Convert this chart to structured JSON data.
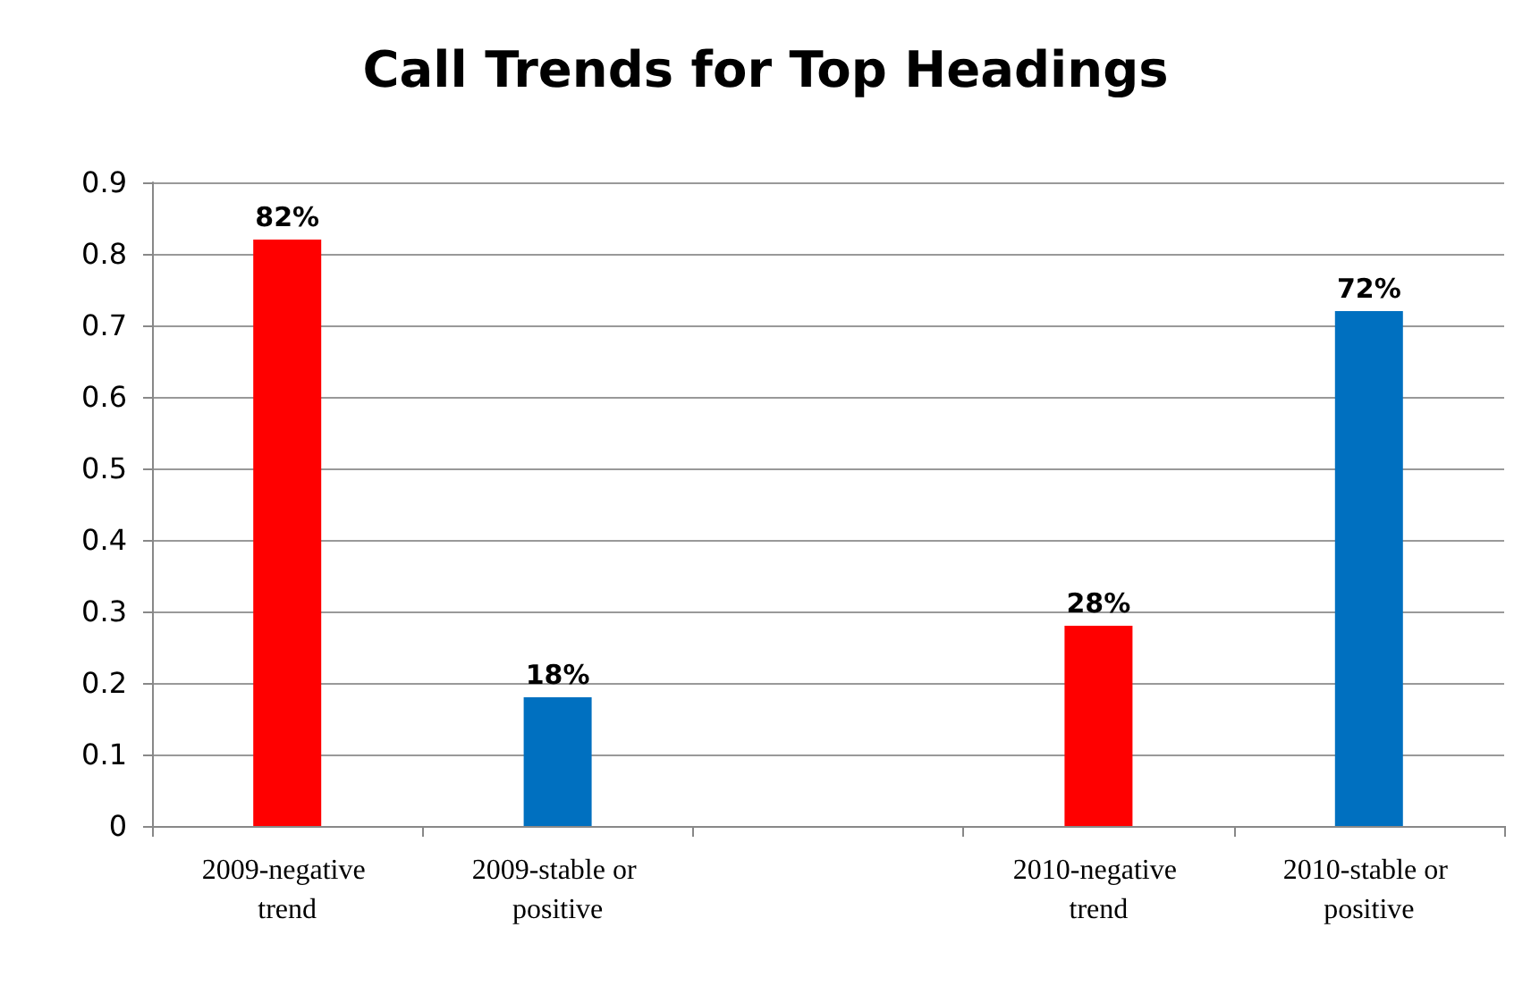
{
  "chart_data": {
    "type": "bar",
    "title": "Call Trends for Top Headings",
    "categories": [
      "2009-negative trend",
      "2009-stable or positive",
      null,
      "2010-negative trend",
      "2010-stable or positive"
    ],
    "values": [
      0.82,
      0.18,
      null,
      0.28,
      0.72
    ],
    "colors": [
      "#ff0000",
      "#0070c0",
      null,
      "#ff0000",
      "#0070c0"
    ],
    "value_labels": [
      "82%",
      "18%",
      null,
      "28%",
      "72%"
    ],
    "ylim": [
      0,
      0.9
    ],
    "yticks": [
      0,
      0.1,
      0.2,
      0.3,
      0.4,
      0.5,
      0.6,
      0.7,
      0.8,
      0.9
    ],
    "grid": "y"
  }
}
